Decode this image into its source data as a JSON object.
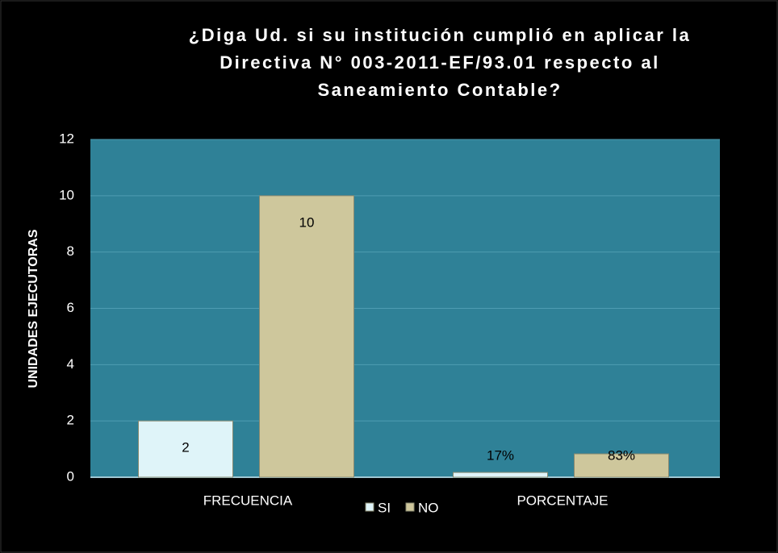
{
  "chart_data": {
    "type": "bar",
    "title": [
      "¿Diga Ud. si su institución cumplió en aplicar la",
      "Directiva N° 003-2011-EF/93.01 respecto al",
      "Saneamiento Contable?"
    ],
    "y_label": "UNIDADES EJECUTORAS",
    "categories": [
      "FRECUENCIA",
      "PORCENTAJE"
    ],
    "series": [
      {
        "name": "SI",
        "color": "#dff4f9",
        "values": [
          2,
          0.17
        ],
        "value_labels": [
          "2",
          "17%"
        ]
      },
      {
        "name": "NO",
        "color": "#cec79c",
        "values": [
          10,
          0.83
        ],
        "value_labels": [
          "10",
          "83%"
        ]
      }
    ],
    "ylim": [
      0,
      12
    ],
    "yticks": [
      0,
      2,
      4,
      6,
      8,
      10,
      12
    ],
    "grid": true,
    "legend": "bottom"
  }
}
